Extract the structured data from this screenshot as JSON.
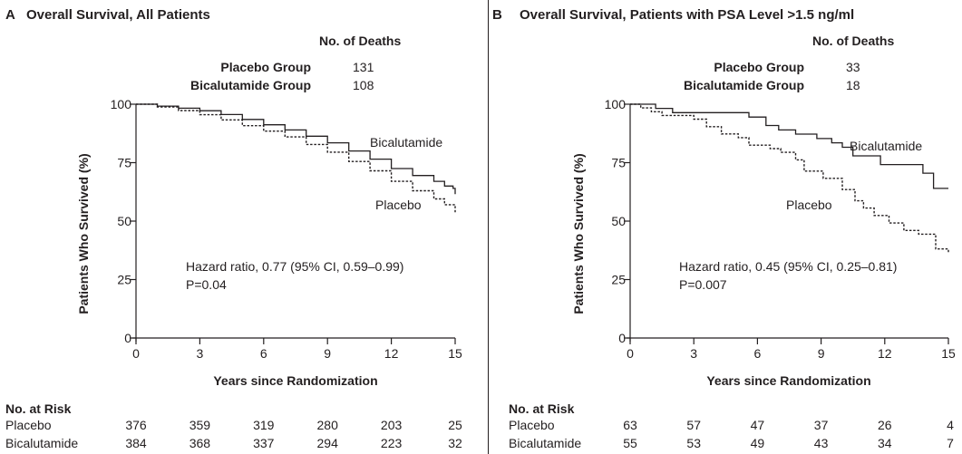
{
  "chart_data": [
    {
      "type": "line",
      "panel_letter": "A",
      "title": "Overall Survival, All Patients",
      "xlabel": "Years since Randomization",
      "ylabel": "Patients Who Survived (%)",
      "xlim": [
        0,
        15
      ],
      "ylim": [
        0,
        100
      ],
      "xticks": [
        0,
        3,
        6,
        9,
        12,
        15
      ],
      "yticks": [
        0,
        25,
        50,
        75,
        100
      ],
      "deaths_header": "No. of Deaths",
      "deaths": [
        {
          "group": "Placebo Group",
          "value": "131"
        },
        {
          "group": "Bicalutamide Group",
          "value": "108"
        }
      ],
      "series": [
        {
          "name": "Bicalutamide",
          "style": "solid",
          "x": [
            0,
            1,
            2,
            3,
            4,
            5,
            6,
            7,
            8,
            9,
            10,
            11,
            12,
            13,
            14,
            14.5,
            14.9,
            15
          ],
          "y": [
            100,
            99.2,
            98.3,
            97.2,
            95.6,
            93.5,
            91.2,
            89,
            86.3,
            83.5,
            80,
            76.5,
            72.5,
            69.5,
            67,
            65,
            64,
            61.5
          ]
        },
        {
          "name": "Placebo",
          "style": "dashed",
          "x": [
            0,
            1,
            2,
            3,
            4,
            5,
            6,
            7,
            8,
            9,
            10,
            11,
            12,
            13,
            14,
            14.5,
            15
          ],
          "y": [
            100,
            98.8,
            97.3,
            95.5,
            93.3,
            90.8,
            88.5,
            86,
            82.8,
            79.5,
            75.5,
            71.5,
            67,
            63,
            59.5,
            57,
            53.5
          ]
        }
      ],
      "annotation": [
        "Hazard ratio, 0.77 (95% CI, 0.59–0.99)",
        "P=0.04"
      ],
      "risk_table": {
        "header": "No. at Risk",
        "rows": [
          {
            "label": "Placebo",
            "values": [
              "376",
              "359",
              "319",
              "280",
              "203",
              "25"
            ]
          },
          {
            "label": "Bicalutamide",
            "values": [
              "384",
              "368",
              "337",
              "294",
              "223",
              "32"
            ]
          }
        ]
      }
    },
    {
      "type": "line",
      "panel_letter": "B",
      "title": "Overall Survival, Patients with PSA Level >1.5 ng/ml",
      "xlabel": "Years since Randomization",
      "ylabel": "Patients Who Survived (%)",
      "xlim": [
        0,
        15
      ],
      "ylim": [
        0,
        100
      ],
      "xticks": [
        0,
        3,
        6,
        9,
        12,
        15
      ],
      "yticks": [
        0,
        25,
        50,
        75,
        100
      ],
      "deaths_header": "No. of Deaths",
      "deaths": [
        {
          "group": "Placebo Group",
          "value": "33"
        },
        {
          "group": "Bicalutamide Group",
          "value": "18"
        }
      ],
      "series": [
        {
          "name": "Bicalutamide",
          "style": "solid",
          "x": [
            0,
            0.6,
            1.2,
            2,
            3,
            4,
            5.1,
            5.6,
            6.4,
            7,
            7.8,
            8.8,
            9.5,
            10,
            10.5,
            11.2,
            11.8,
            13,
            13.8,
            14.3,
            15
          ],
          "y": [
            100,
            100,
            98.2,
            96.4,
            96.4,
            96.4,
            96.4,
            94.5,
            90.9,
            89,
            87.2,
            85.3,
            83.5,
            81.6,
            77.9,
            77.9,
            74.2,
            74.2,
            70.5,
            64,
            64
          ]
        },
        {
          "name": "Placebo",
          "style": "dashed",
          "x": [
            0,
            0.5,
            1,
            1.5,
            2.5,
            3,
            3.6,
            4.3,
            5.1,
            5.6,
            6.6,
            7.1,
            7.8,
            8.2,
            9.1,
            10,
            10.6,
            11,
            11.5,
            12.2,
            12.9,
            13.6,
            14.4,
            15
          ],
          "y": [
            100,
            98.4,
            96.8,
            95.2,
            95.2,
            93.6,
            90.4,
            87.3,
            85.7,
            82.5,
            81,
            79.4,
            76.2,
            71.4,
            68.3,
            63.5,
            58.7,
            55.6,
            52.4,
            49.2,
            46,
            44.4,
            38.1,
            36.5
          ]
        }
      ],
      "annotation": [
        "Hazard ratio, 0.45 (95% CI, 0.25–0.81)",
        "P=0.007"
      ],
      "risk_table": {
        "header": "No. at Risk",
        "rows": [
          {
            "label": "Placebo",
            "values": [
              "63",
              "57",
              "47",
              "37",
              "26",
              "4"
            ]
          },
          {
            "label": "Bicalutamide",
            "values": [
              "55",
              "53",
              "49",
              "43",
              "34",
              "7"
            ]
          }
        ]
      }
    }
  ]
}
